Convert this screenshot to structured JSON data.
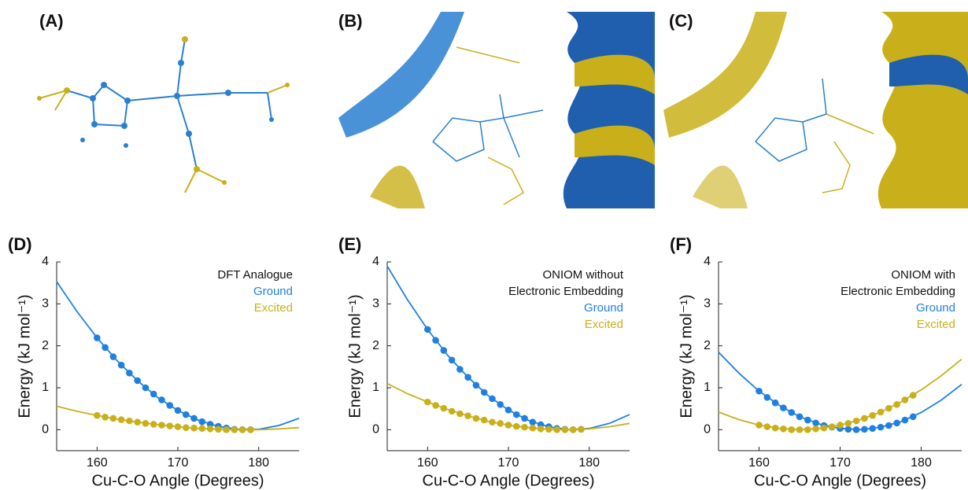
{
  "panels": [
    "(A)",
    "(B)",
    "(C)"
  ],
  "chart_data": [
    {
      "type": "line",
      "panel_label": "(D)",
      "legend_title": [
        "DFT Analogue"
      ],
      "xlabel": "Cu-C-O Angle (Degrees)",
      "ylabel": "Energy (kJ mol⁻¹)",
      "xlim": [
        155,
        185
      ],
      "ylim": [
        -0.5,
        4
      ],
      "xticks": [
        160,
        170,
        180
      ],
      "yticks": [
        0,
        1,
        2,
        3,
        4
      ],
      "points_x": [
        160,
        161,
        162,
        163,
        164,
        165,
        166,
        167,
        168,
        169,
        170,
        171,
        172,
        173,
        174,
        175,
        176,
        177,
        178,
        179
      ],
      "fit_x": [
        155,
        157.5,
        160,
        162.5,
        165,
        167.5,
        170,
        172.5,
        175,
        177.5,
        180,
        182.5,
        185
      ],
      "series": [
        {
          "name": "Ground",
          "color": "#1f80e0",
          "values": [
            2.19,
            1.96,
            1.74,
            1.54,
            1.35,
            1.17,
            1.0,
            0.85,
            0.71,
            0.58,
            0.46,
            0.36,
            0.27,
            0.19,
            0.13,
            0.08,
            0.04,
            0.01,
            0.0,
            0.0
          ],
          "fit_values": [
            3.53,
            2.82,
            2.19,
            1.64,
            1.17,
            0.77,
            0.46,
            0.23,
            0.08,
            0.01,
            0.01,
            0.1,
            0.27
          ]
        },
        {
          "name": "Excited",
          "color": "#c9b01a",
          "values": [
            0.34,
            0.3,
            0.27,
            0.24,
            0.21,
            0.18,
            0.15,
            0.13,
            0.11,
            0.09,
            0.07,
            0.05,
            0.04,
            0.03,
            0.02,
            0.01,
            0.0,
            0.0,
            0.0,
            0.0
          ],
          "fit_values": [
            0.56,
            0.44,
            0.34,
            0.25,
            0.18,
            0.12,
            0.07,
            0.03,
            0.01,
            0.0,
            0.0,
            0.02,
            0.05
          ]
        }
      ]
    },
    {
      "type": "line",
      "panel_label": "(E)",
      "legend_title": [
        "ONIOM without",
        "Electronic Embedding"
      ],
      "xlabel": "Cu-C-O Angle (Degrees)",
      "ylabel": "Energy (kJ mol⁻¹)",
      "xlim": [
        155,
        185
      ],
      "ylim": [
        -0.5,
        4
      ],
      "xticks": [
        160,
        170,
        180
      ],
      "yticks": [
        0,
        1,
        2,
        3,
        4
      ],
      "points_x": [
        160,
        161,
        162,
        163,
        164,
        165,
        166,
        167,
        168,
        169,
        170,
        171,
        172,
        173,
        174,
        175,
        176,
        177,
        178,
        179
      ],
      "fit_x": [
        155,
        157.5,
        160,
        162.5,
        165,
        167.5,
        170,
        172.5,
        175,
        177.5,
        180,
        182.5,
        185
      ],
      "series": [
        {
          "name": "Ground",
          "color": "#1f80e0",
          "values": [
            2.39,
            2.13,
            1.89,
            1.66,
            1.44,
            1.25,
            1.06,
            0.89,
            0.74,
            0.6,
            0.47,
            0.36,
            0.27,
            0.18,
            0.12,
            0.07,
            0.03,
            0.01,
            0.0,
            0.01
          ],
          "fit_values": [
            3.9,
            3.1,
            2.39,
            1.77,
            1.25,
            0.81,
            0.47,
            0.22,
            0.07,
            0.0,
            0.03,
            0.15,
            0.36
          ]
        },
        {
          "name": "Excited",
          "color": "#c9b01a",
          "values": [
            0.66,
            0.58,
            0.51,
            0.44,
            0.38,
            0.33,
            0.27,
            0.23,
            0.18,
            0.15,
            0.11,
            0.08,
            0.06,
            0.04,
            0.02,
            0.01,
            0.0,
            0.0,
            0.0,
            0.01
          ],
          "fit_values": [
            1.1,
            0.86,
            0.66,
            0.48,
            0.33,
            0.2,
            0.11,
            0.05,
            0.01,
            0.0,
            0.02,
            0.07,
            0.15
          ]
        }
      ]
    },
    {
      "type": "line",
      "panel_label": "(F)",
      "legend_title": [
        "ONIOM with",
        "Electronic Embedding"
      ],
      "xlabel": "Cu-C-O Angle (Degrees)",
      "ylabel": "Energy (kJ mol⁻¹)",
      "xlim": [
        155,
        185
      ],
      "ylim": [
        -0.5,
        4
      ],
      "xticks": [
        160,
        170,
        180
      ],
      "yticks": [
        0,
        1,
        2,
        3,
        4
      ],
      "points_x": [
        160,
        161,
        162,
        163,
        164,
        165,
        166,
        167,
        168,
        169,
        170,
        171,
        172,
        173,
        174,
        175,
        176,
        177,
        178,
        179
      ],
      "fit_x": [
        155,
        157.5,
        160,
        162.5,
        165,
        167.5,
        170,
        172.5,
        175,
        177.5,
        180,
        182.5,
        185
      ],
      "series": [
        {
          "name": "Ground",
          "color": "#1f80e0",
          "values": [
            0.92,
            0.77,
            0.64,
            0.52,
            0.41,
            0.31,
            0.23,
            0.16,
            0.1,
            0.06,
            0.03,
            0.01,
            0.0,
            0.01,
            0.03,
            0.06,
            0.1,
            0.16,
            0.23,
            0.31
          ],
          "fit_values": [
            1.85,
            1.35,
            0.92,
            0.58,
            0.31,
            0.13,
            0.03,
            0.0,
            0.06,
            0.19,
            0.41,
            0.71,
            1.08
          ]
        },
        {
          "name": "Excited",
          "color": "#c9b01a",
          "values": [
            0.11,
            0.07,
            0.04,
            0.02,
            0.0,
            0.0,
            0.0,
            0.02,
            0.04,
            0.07,
            0.11,
            0.15,
            0.21,
            0.27,
            0.34,
            0.42,
            0.51,
            0.6,
            0.71,
            0.82
          ],
          "fit_values": [
            0.42,
            0.24,
            0.11,
            0.03,
            0.0,
            0.03,
            0.11,
            0.24,
            0.42,
            0.66,
            0.95,
            1.29,
            1.68
          ]
        }
      ]
    }
  ]
}
